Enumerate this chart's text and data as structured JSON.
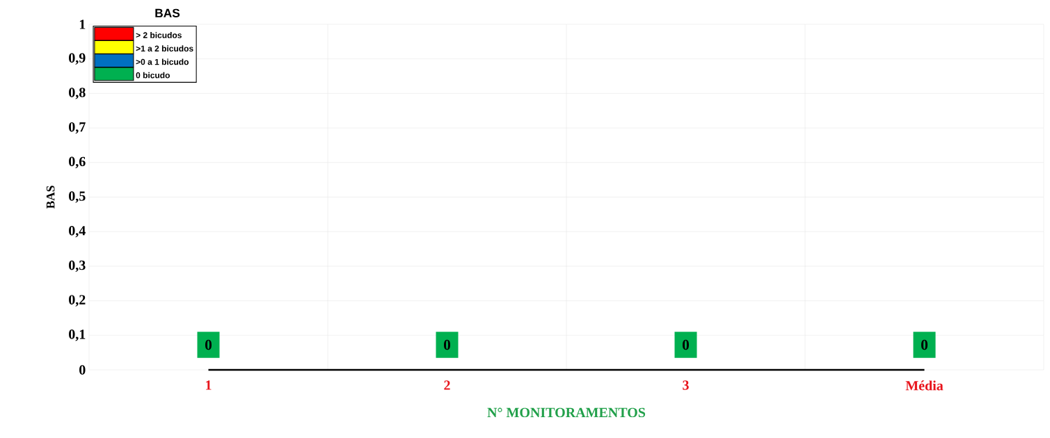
{
  "chart_data": {
    "type": "line",
    "title": "BAS",
    "xlabel": "N° MONITORAMENTOS",
    "ylabel": "BAS",
    "categories": [
      "1",
      "2",
      "3",
      "Média"
    ],
    "series": [
      {
        "color": "#000000",
        "values": [
          0,
          0,
          0,
          0
        ]
      },
      {
        "name": "> 2 bicudos",
        "color": "#ff0000",
        "values": [
          null,
          null,
          null,
          null
        ]
      },
      {
        "name": ">1 a 2 bicudos",
        "color": "#ffff00",
        "values": [
          null,
          null,
          null,
          null
        ]
      },
      {
        "name": ">0 a 1 bicudo",
        "color": "#0070c0",
        "values": [
          null,
          null,
          null,
          null
        ]
      },
      {
        "name": "0 bicudo",
        "color": "#00b050",
        "values": [
          null,
          null,
          null,
          null
        ]
      }
    ],
    "ylim": [
      0,
      1
    ],
    "yticks": [
      0,
      {
        "value": 0.1,
        "label": "0,1"
      },
      {
        "value": 0.2,
        "label": "0,2"
      },
      {
        "value": 0.3,
        "label": "0,3"
      },
      {
        "value": 0.4,
        "label": "0,4"
      },
      {
        "value": 0.5,
        "label": "0,5"
      },
      {
        "value": 0.6,
        "label": "0,6"
      },
      {
        "value": 0.7,
        "label": "0,7"
      },
      {
        "value": 0.8,
        "label": "0,8"
      },
      {
        "value": 0.9,
        "label": "0,9"
      },
      1
    ],
    "grid": true,
    "legend": "top left",
    "data_labels": true,
    "marker": "none",
    "line_style": "solid"
  }
}
